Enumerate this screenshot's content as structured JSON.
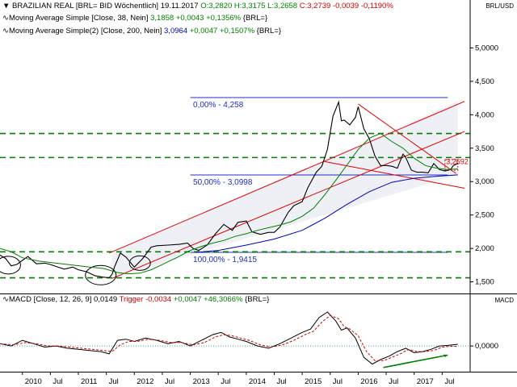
{
  "header": {
    "line1": {
      "name": "BRAZILIAN REAL [BRL= BID Wöchentlich] 19.11.2017",
      "ohl": "O:3,2820 H:3,3175 L:3,2658",
      "close": "C:3,2739",
      "change": "-0,0039",
      "change_pct": "-0,1190%"
    },
    "line2": {
      "name": "Moving Average Simple [Close, 38, Nein]",
      "value": "3,1858",
      "change": "+0,0043",
      "change_pct": "+0,1356%",
      "unit": "{BRL=}"
    },
    "line3": {
      "name": "Moving Average Simple(2) [Close, 200, Nein]",
      "value": "3,0964",
      "change": "+0,0047",
      "change_pct": "+0,1507%",
      "unit": "{BRL=}"
    },
    "macd": {
      "name": "MACD [Close, 12, 26, 9]",
      "value": "0,0149",
      "trigger_label": "Trigger",
      "trigger_value": "-0,0034",
      "change": "+0,0047",
      "change_pct": "+46,3066%",
      "unit": "{BRL=}"
    },
    "corner_top": "BRL/USD",
    "corner_bottom": "MACD"
  },
  "colors": {
    "price": "#000000",
    "ma38": "#008000",
    "ma200": "#0000c0",
    "macd": "#000000",
    "trigger": "#d00000",
    "channel": "#e00000",
    "support": "#008000",
    "fib": "#1f2fbf",
    "shade": "#eef0f5"
  },
  "chart_data": [
    {
      "type": "line",
      "title": "BRAZILIAN REAL [BRL= BID Wöchentlich]",
      "y_tick_labels": [
        "1,500",
        "2,000",
        "2,500",
        "3,000",
        "3,500",
        "4,000",
        "4,500",
        "5,0000"
      ],
      "y_ticks": [
        1.5,
        2.0,
        2.5,
        3.0,
        3.5,
        4.0,
        4.5,
        5.0
      ],
      "ylim": [
        1.35,
        5.15
      ],
      "x_tick_labels": [
        "2010",
        "Jul",
        "2011",
        "Jul",
        "2012",
        "Jul",
        "2013",
        "Jul",
        "2014",
        "Jul",
        "2015",
        "Jul",
        "2016",
        "Jul",
        "2017",
        "Jul"
      ],
      "x_ticks": [
        2010.0,
        2010.5,
        2011.0,
        2011.5,
        2012.0,
        2012.5,
        2013.0,
        2013.5,
        2014.0,
        2014.5,
        2015.0,
        2015.5,
        2016.0,
        2016.5,
        2017.0,
        2017.5
      ],
      "xlim": [
        2009.6,
        2018.0
      ],
      "series": [
        {
          "name": "BRAZILIAN REAL",
          "x": [
            2009.6,
            2009.7,
            2009.8,
            2009.9,
            2010.0,
            2010.1,
            2010.25,
            2010.4,
            2010.5,
            2010.6,
            2010.75,
            2010.9,
            2011.0,
            2011.15,
            2011.3,
            2011.45,
            2011.55,
            2011.6,
            2011.65,
            2011.75,
            2011.85,
            2012.0,
            2012.15,
            2012.3,
            2012.4,
            2012.6,
            2012.8,
            2012.95,
            2013.05,
            2013.15,
            2013.3,
            2013.45,
            2013.6,
            2013.75,
            2013.85,
            2014.0,
            2014.1,
            2014.25,
            2014.4,
            2014.5,
            2014.6,
            2014.75,
            2014.85,
            2015.0,
            2015.1,
            2015.25,
            2015.35,
            2015.45,
            2015.55,
            2015.65,
            2015.7,
            2015.75,
            2015.85,
            2015.95,
            2016.0,
            2016.1,
            2016.2,
            2016.3,
            2016.4,
            2016.5,
            2016.6,
            2016.7,
            2016.8,
            2016.85,
            2016.95,
            2017.05,
            2017.15,
            2017.25,
            2017.35,
            2017.45,
            2017.55,
            2017.65,
            2017.7,
            2017.78
          ],
          "y": [
            1.9,
            1.85,
            1.74,
            1.76,
            1.82,
            1.88,
            1.77,
            1.78,
            1.76,
            1.73,
            1.69,
            1.72,
            1.68,
            1.65,
            1.59,
            1.57,
            1.56,
            1.61,
            1.73,
            1.93,
            1.87,
            1.72,
            1.85,
            2.02,
            2.04,
            2.05,
            2.06,
            2.08,
            2.0,
            1.97,
            2.05,
            2.22,
            2.36,
            2.27,
            2.39,
            2.41,
            2.25,
            2.21,
            2.24,
            2.24,
            2.32,
            2.54,
            2.64,
            2.7,
            2.91,
            3.14,
            3.23,
            3.48,
            3.98,
            4.19,
            3.91,
            3.92,
            3.85,
            3.96,
            4.12,
            3.79,
            3.64,
            3.38,
            3.24,
            3.24,
            3.23,
            3.2,
            3.41,
            3.36,
            3.17,
            3.14,
            3.14,
            3.13,
            3.27,
            3.18,
            3.16,
            3.18,
            3.24,
            3.27
          ]
        },
        {
          "name": "Moving Average Simple [Close, 38, Nein]",
          "x": [
            2009.6,
            2009.8,
            2010.0,
            2010.3,
            2010.6,
            2010.9,
            2011.2,
            2011.45,
            2011.7,
            2011.9,
            2012.1,
            2012.3,
            2012.55,
            2012.8,
            2013.0,
            2013.2,
            2013.4,
            2013.6,
            2013.8,
            2014.0,
            2014.2,
            2014.4,
            2014.6,
            2014.8,
            2015.0,
            2015.2,
            2015.4,
            2015.6,
            2015.8,
            2016.0,
            2016.2,
            2016.4,
            2016.6,
            2016.8,
            2017.0,
            2017.2,
            2017.4,
            2017.6,
            2017.78
          ],
          "y": [
            2.0,
            1.95,
            1.86,
            1.81,
            1.78,
            1.75,
            1.72,
            1.7,
            1.64,
            1.62,
            1.63,
            1.68,
            1.78,
            1.88,
            1.97,
            2.03,
            2.08,
            2.12,
            2.18,
            2.22,
            2.27,
            2.31,
            2.35,
            2.4,
            2.48,
            2.6,
            2.8,
            3.02,
            3.25,
            3.48,
            3.65,
            3.72,
            3.6,
            3.5,
            3.35,
            3.24,
            3.2,
            3.18,
            3.19
          ]
        },
        {
          "name": "Moving Average Simple(2) [Close, 200, Nein]",
          "x": [
            2013.1,
            2013.5,
            2014.0,
            2014.5,
            2015.0,
            2015.4,
            2015.8,
            2016.2,
            2016.6,
            2017.0,
            2017.4,
            2017.78
          ],
          "y": [
            1.94,
            1.97,
            2.05,
            2.14,
            2.27,
            2.45,
            2.66,
            2.85,
            2.99,
            3.05,
            3.08,
            3.1
          ]
        }
      ],
      "annotations": {
        "fibonacci": [
          {
            "label": "0,00% - 4,258",
            "y": 4.258
          },
          {
            "label": "50,00% - 3,0998",
            "y": 3.0998
          },
          {
            "label": "100,00% - 1,9415",
            "y": 1.9415
          }
        ],
        "support_levels": [
          1.56,
          1.95,
          3.36,
          3.72
        ],
        "box_label": "3,2692"
      }
    },
    {
      "type": "line",
      "title": "MACD [Close, 12, 26, 9]",
      "y_tick_labels": [
        "0,0000"
      ],
      "y_ticks": [
        0.0
      ],
      "ylim": [
        -0.22,
        0.35
      ],
      "xlim": [
        2009.6,
        2018.0
      ],
      "series": [
        {
          "name": "MACD",
          "x": [
            2009.6,
            2009.8,
            2010.0,
            2010.2,
            2010.4,
            2010.6,
            2010.8,
            2011.0,
            2011.2,
            2011.4,
            2011.55,
            2011.7,
            2011.85,
            2012.0,
            2012.2,
            2012.4,
            2012.6,
            2012.8,
            2013.0,
            2013.2,
            2013.4,
            2013.55,
            2013.7,
            2013.85,
            2014.0,
            2014.2,
            2014.4,
            2014.6,
            2014.8,
            2015.0,
            2015.15,
            2015.3,
            2015.45,
            2015.6,
            2015.7,
            2015.8,
            2015.95,
            2016.1,
            2016.25,
            2016.4,
            2016.55,
            2016.7,
            2016.85,
            2017.0,
            2017.15,
            2017.3,
            2017.45,
            2017.6,
            2017.78
          ],
          "y": [
            0.02,
            0.0,
            0.05,
            0.02,
            -0.01,
            0.0,
            -0.02,
            -0.03,
            -0.04,
            -0.05,
            -0.07,
            0.05,
            0.06,
            0.04,
            0.07,
            0.05,
            0.02,
            0.04,
            0.0,
            0.05,
            0.1,
            0.12,
            0.08,
            0.06,
            0.04,
            0.0,
            -0.02,
            0.02,
            0.07,
            0.12,
            0.15,
            0.25,
            0.3,
            0.22,
            0.14,
            0.16,
            0.07,
            -0.1,
            -0.16,
            -0.12,
            -0.09,
            -0.05,
            -0.02,
            -0.06,
            -0.05,
            -0.03,
            0.0,
            0.005,
            0.015
          ]
        },
        {
          "name": "Trigger",
          "x": [
            2009.6,
            2009.85,
            2010.05,
            2010.25,
            2010.45,
            2010.65,
            2010.85,
            2011.05,
            2011.25,
            2011.45,
            2011.6,
            2011.75,
            2011.9,
            2012.05,
            2012.25,
            2012.45,
            2012.65,
            2012.85,
            2013.05,
            2013.25,
            2013.45,
            2013.6,
            2013.75,
            2013.9,
            2014.05,
            2014.25,
            2014.45,
            2014.65,
            2014.85,
            2015.05,
            2015.2,
            2015.35,
            2015.5,
            2015.65,
            2015.75,
            2015.85,
            2016.0,
            2016.15,
            2016.3,
            2016.45,
            2016.6,
            2016.75,
            2016.9,
            2017.05,
            2017.2,
            2017.35,
            2017.5,
            2017.65,
            2017.78
          ],
          "y": [
            0.02,
            0.01,
            0.03,
            0.02,
            0.0,
            0.0,
            -0.01,
            -0.02,
            -0.03,
            -0.04,
            -0.05,
            0.01,
            0.04,
            0.04,
            0.06,
            0.05,
            0.03,
            0.03,
            0.01,
            0.03,
            0.08,
            0.1,
            0.09,
            0.07,
            0.05,
            0.01,
            -0.01,
            0.01,
            0.05,
            0.1,
            0.13,
            0.21,
            0.27,
            0.24,
            0.17,
            0.15,
            0.09,
            -0.05,
            -0.13,
            -0.13,
            -0.1,
            -0.07,
            -0.03,
            -0.05,
            -0.05,
            -0.04,
            -0.01,
            -0.002,
            -0.0034
          ]
        }
      ]
    }
  ]
}
